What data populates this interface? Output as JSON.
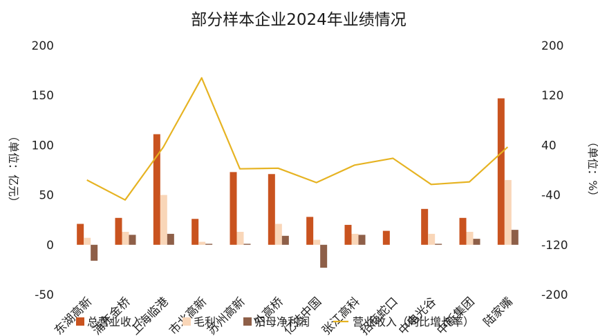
{
  "colors": {
    "revenue": "#c9531f",
    "gross_profit": "#f9d6b8",
    "net_profit": "#8e5f48",
    "growth": "#e6b322"
  },
  "chart_data": {
    "type": "bar",
    "title": "部分样本企业2024年业绩情况",
    "ylabel_left": "（单位：亿元）",
    "ylabel_right": "（单位：%）",
    "ylim_left": [
      -50,
      200
    ],
    "ylim_right": [
      -200,
      200
    ],
    "yticks_left": [
      "200",
      "150",
      "100",
      "50",
      "0",
      "-50"
    ],
    "yticks_right": [
      "200",
      "120",
      "40",
      "-40",
      "-120",
      "-200"
    ],
    "categories": [
      "东湖高新",
      "浦东金桥",
      "上海临港",
      "市北高新",
      "苏州高新",
      "外高桥",
      "亿达中国",
      "张江高科",
      "招商蛇口",
      "中电光谷",
      "中新集团",
      "陆家嘴"
    ],
    "series": [
      {
        "name": "总营业收入",
        "kind": "bar",
        "axis": "left",
        "values": [
          21,
          27,
          111,
          26,
          73,
          71,
          28,
          20,
          14,
          36,
          27,
          147
        ]
      },
      {
        "name": "毛利",
        "kind": "bar",
        "axis": "left",
        "values": [
          7,
          13,
          50,
          3,
          13,
          21,
          5,
          11,
          0,
          11,
          13,
          65
        ]
      },
      {
        "name": "归母净利润",
        "kind": "bar",
        "axis": "left",
        "values": [
          -16,
          10,
          11,
          1,
          1,
          9,
          -23,
          10,
          0,
          1,
          6,
          15
        ]
      },
      {
        "name": "营业收入（同比增长率）",
        "kind": "line",
        "axis": "right",
        "values": [
          -16,
          -48,
          37,
          148,
          2,
          3,
          -20,
          8,
          19,
          -23,
          -19,
          37
        ]
      }
    ],
    "legend_position": "bottom",
    "grid": false
  }
}
